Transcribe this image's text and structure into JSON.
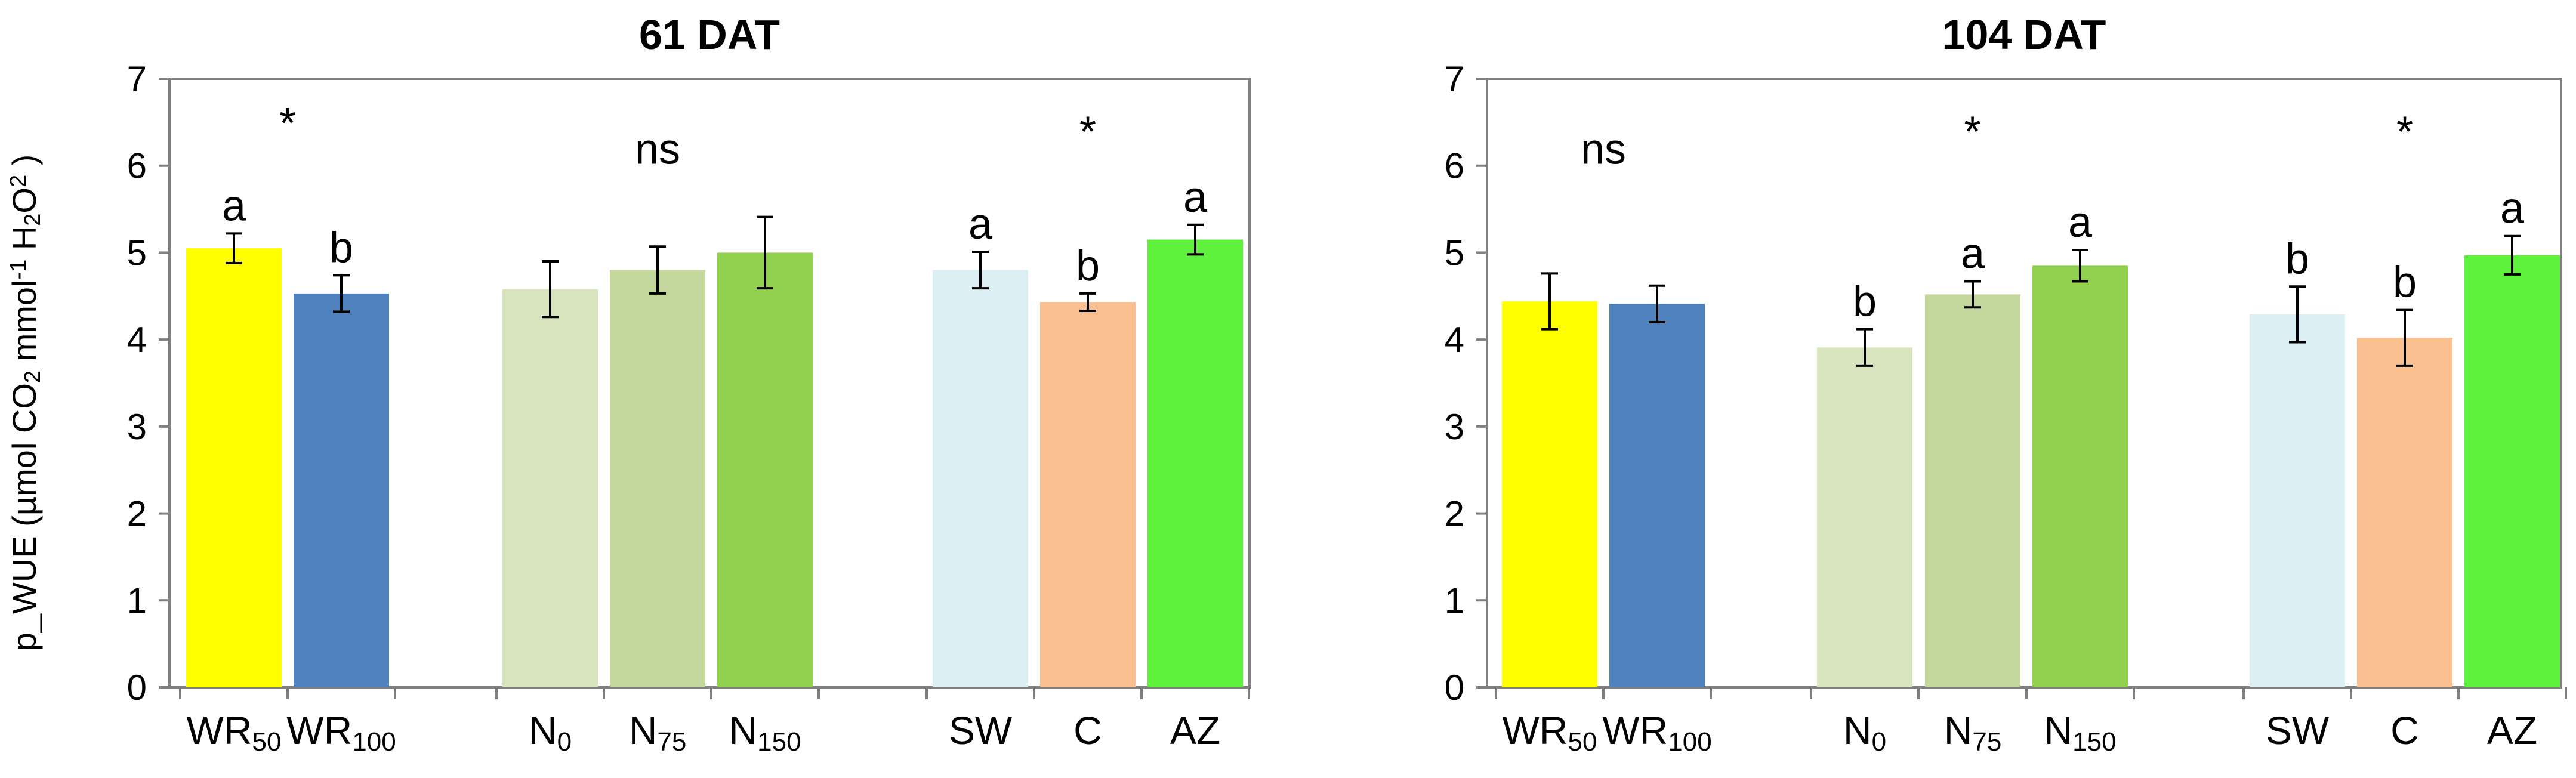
{
  "colors": {
    "WR50": "#FFFF00",
    "WR100": "#4F81BD",
    "N0": "#D7E4BD",
    "N75": "#C3D69B",
    "N150": "#92D050",
    "SW": "#DAEEF3",
    "C": "#FAC090",
    "AZ": "#5EF23D"
  },
  "y_axis_label": {
    "prefix": "p_WUE (µmol CO",
    "sub1": "2",
    "mid1": " mmol",
    "sup1": "-1",
    "mid2": " H",
    "sub2": "2",
    "mid3": "O",
    "sup2": "2",
    "suffix": " )"
  },
  "chart_data": [
    {
      "type": "bar",
      "title": "61 DAT",
      "ylim": [
        0,
        7
      ],
      "yticks": [
        "0",
        "1",
        "2",
        "3",
        "4",
        "5",
        "6",
        "7"
      ],
      "categories": [
        {
          "key": "WR50",
          "base": "WR",
          "sub": "50",
          "value": 5.05,
          "err": 0.17,
          "letter": "a",
          "color": "#FFFF00"
        },
        {
          "key": "WR100",
          "base": "WR",
          "sub": "100",
          "value": 4.53,
          "err": 0.21,
          "letter": "b",
          "color": "#4F81BD"
        },
        {
          "key": "N0",
          "base": "N",
          "sub": "0",
          "value": 4.58,
          "err": 0.32,
          "letter": "",
          "color": "#D7E4BD"
        },
        {
          "key": "N75",
          "base": "N",
          "sub": "75",
          "value": 4.8,
          "err": 0.27,
          "letter": "",
          "color": "#C3D69B"
        },
        {
          "key": "N150",
          "base": "N",
          "sub": "150",
          "value": 5.0,
          "err": 0.41,
          "letter": "",
          "color": "#92D050"
        },
        {
          "key": "SW",
          "base": "SW",
          "sub": "",
          "value": 4.8,
          "err": 0.21,
          "letter": "a",
          "color": "#DAEEF3"
        },
        {
          "key": "C",
          "base": "C",
          "sub": "",
          "value": 4.43,
          "err": 0.1,
          "letter": "b",
          "color": "#FAC090"
        },
        {
          "key": "AZ",
          "base": "AZ",
          "sub": "",
          "value": 5.15,
          "err": 0.17,
          "letter": "a",
          "color": "#5EF23D"
        }
      ],
      "groups": [
        {
          "label": "*",
          "members": [
            "WR50",
            "WR100"
          ],
          "y": 6.5
        },
        {
          "label": "ns",
          "members": [
            "N0",
            "N75",
            "N150"
          ],
          "y": 6.2
        },
        {
          "label": "*",
          "members": [
            "SW",
            "C",
            "AZ"
          ],
          "y": 6.4
        }
      ]
    },
    {
      "type": "bar",
      "title": "104 DAT",
      "ylim": [
        0,
        7
      ],
      "yticks": [
        "0",
        "1",
        "2",
        "3",
        "4",
        "5",
        "6",
        "7"
      ],
      "categories": [
        {
          "key": "WR50",
          "base": "WR",
          "sub": "50",
          "value": 4.44,
          "err": 0.32,
          "letter": "",
          "color": "#FFFF00"
        },
        {
          "key": "WR100",
          "base": "WR",
          "sub": "100",
          "value": 4.41,
          "err": 0.21,
          "letter": "",
          "color": "#4F81BD"
        },
        {
          "key": "N0",
          "base": "N",
          "sub": "0",
          "value": 3.91,
          "err": 0.21,
          "letter": "b",
          "color": "#D7E4BD"
        },
        {
          "key": "N75",
          "base": "N",
          "sub": "75",
          "value": 4.52,
          "err": 0.15,
          "letter": "a",
          "color": "#C3D69B"
        },
        {
          "key": "N150",
          "base": "N",
          "sub": "150",
          "value": 4.85,
          "err": 0.18,
          "letter": "a",
          "color": "#92D050"
        },
        {
          "key": "SW",
          "base": "SW",
          "sub": "",
          "value": 4.29,
          "err": 0.32,
          "letter": "b",
          "color": "#DAEEF3"
        },
        {
          "key": "C",
          "base": "C",
          "sub": "",
          "value": 4.02,
          "err": 0.32,
          "letter": "b",
          "color": "#FAC090"
        },
        {
          "key": "AZ",
          "base": "AZ",
          "sub": "",
          "value": 4.97,
          "err": 0.22,
          "letter": "a",
          "color": "#5EF23D"
        }
      ],
      "groups": [
        {
          "label": "ns",
          "members": [
            "WR50",
            "WR100"
          ],
          "y": 6.2
        },
        {
          "label": "*",
          "members": [
            "N0",
            "N75",
            "N150"
          ],
          "y": 6.4
        },
        {
          "label": "*",
          "members": [
            "SW",
            "C",
            "AZ"
          ],
          "y": 6.4
        }
      ]
    }
  ]
}
